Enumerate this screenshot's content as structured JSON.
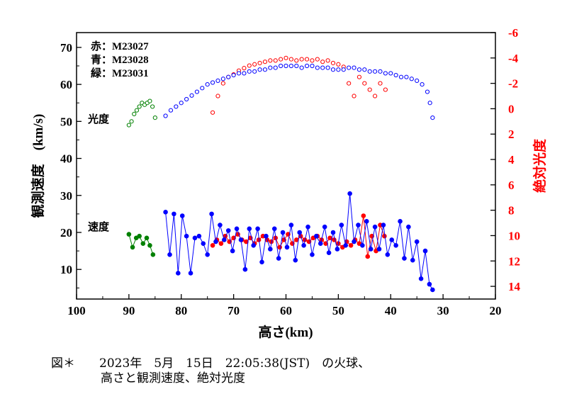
{
  "chart_data": {
    "type": "scatter",
    "xlabel": "高さ(km)",
    "ylabel_left": "観測速度　(km/s)",
    "ylabel_right": "絶対光度",
    "xlim": [
      100,
      20
    ],
    "ylim_left": [
      2,
      74
    ],
    "ylim_right": [
      15,
      -6
    ],
    "x_ticks": [
      "100",
      "90",
      "80",
      "70",
      "60",
      "50",
      "40",
      "30",
      "20"
    ],
    "y_left_ticks": [
      "10",
      "20",
      "30",
      "40",
      "50",
      "60",
      "70"
    ],
    "y_right_ticks": [
      "-6",
      "-4",
      "-2",
      "0",
      "2",
      "4",
      "6",
      "8",
      "10",
      "12",
      "14"
    ],
    "legend_lines": [
      "赤：M23027",
      "青：M23028",
      "緑：M23031"
    ],
    "label_brightness": "光度",
    "label_speed": "速度",
    "colors": {
      "red": "#ff0000",
      "blue": "#0000ff",
      "green": "#008000",
      "axis_right": "#ff0000"
    },
    "series": [
      {
        "name": "M23027",
        "kind": "speed",
        "color": "red",
        "x": [
          74.0,
          73.2,
          72.4,
          71.6,
          70.8,
          70.0,
          69.2,
          68.4,
          67.6,
          66.8,
          66.0,
          65.2,
          64.4,
          63.6,
          62.8,
          62.0,
          61.2,
          60.4,
          59.6,
          58.8,
          58.0,
          57.2,
          56.4,
          55.6,
          54.8,
          54.0,
          53.2,
          52.4,
          51.6,
          50.8,
          50.0,
          49.2,
          48.4,
          47.6,
          46.8,
          46.0,
          45.2,
          44.4,
          43.6,
          42.8,
          42.0,
          41.2
        ],
        "y": [
          16.5,
          18.0,
          17.0,
          19.0,
          17.5,
          18.5,
          19.5,
          18.0,
          17.5,
          18.5,
          17.0,
          18.0,
          19.0,
          18.0,
          17.5,
          18.5,
          16.0,
          18.0,
          19.5,
          17.0,
          18.0,
          19.0,
          18.0,
          17.5,
          18.5,
          19.0,
          18.0,
          17.0,
          18.5,
          18.0,
          17.0,
          16.0,
          17.5,
          16.5,
          18.0,
          17.0,
          24.5,
          13.5,
          19.0,
          15.0,
          22.0,
          19.0
        ]
      },
      {
        "name": "M23028",
        "kind": "speed",
        "color": "blue",
        "x": [
          83.0,
          82.2,
          81.4,
          80.6,
          79.8,
          79.0,
          78.2,
          77.4,
          76.6,
          75.8,
          75.0,
          74.2,
          73.4,
          72.6,
          71.8,
          71.0,
          70.2,
          69.4,
          68.6,
          67.8,
          67.0,
          66.2,
          65.4,
          64.6,
          63.8,
          63.0,
          62.2,
          61.4,
          60.6,
          59.8,
          59.0,
          58.2,
          57.4,
          56.6,
          55.8,
          55.0,
          54.2,
          53.4,
          52.6,
          51.8,
          51.0,
          50.2,
          49.4,
          48.6,
          47.8,
          47.0,
          46.2,
          45.4,
          44.6,
          43.8,
          43.0,
          42.2,
          41.4,
          40.6,
          39.8,
          39.0,
          38.2,
          37.4,
          36.6,
          35.8,
          35.0,
          34.2,
          33.4,
          32.6,
          32.0
        ],
        "y": [
          25.5,
          14.0,
          25.0,
          9.0,
          24.5,
          19.0,
          9.0,
          18.5,
          19.0,
          17.0,
          14.0,
          25.0,
          17.5,
          22.0,
          18.0,
          20.5,
          15.0,
          21.0,
          18.0,
          10.0,
          21.0,
          16.5,
          21.0,
          12.0,
          19.0,
          15.5,
          21.0,
          13.0,
          20.0,
          16.0,
          22.0,
          12.5,
          20.0,
          16.5,
          21.5,
          14.0,
          19.0,
          17.0,
          21.5,
          14.5,
          20.0,
          15.5,
          22.0,
          16.5,
          30.5,
          17.5,
          22.0,
          16.5,
          23.0,
          15.5,
          21.5,
          15.5,
          22.0,
          14.0,
          18.0,
          16.5,
          23.0,
          13.0,
          21.5,
          12.5,
          17.5,
          7.5,
          15.0,
          6.0,
          4.5
        ]
      },
      {
        "name": "M23031",
        "kind": "speed",
        "color": "green",
        "x": [
          90.0,
          89.3,
          88.6,
          88.0,
          87.3,
          86.6,
          86.0,
          85.4
        ],
        "y": [
          19.5,
          16.0,
          18.5,
          19.0,
          17.0,
          18.5,
          16.5,
          14.0
        ]
      },
      {
        "name": "M23027",
        "kind": "brightness",
        "color": "red",
        "x": [
          74.0,
          73.0,
          72.0,
          71.0,
          70.0,
          69.0,
          68.0,
          67.0,
          66.0,
          65.0,
          64.0,
          63.0,
          62.0,
          61.0,
          60.0,
          59.0,
          58.0,
          57.0,
          56.0,
          55.0,
          54.0,
          53.0,
          52.0,
          51.0,
          50.0,
          49.0,
          48.0,
          47.0,
          46.0,
          45.0,
          44.0,
          43.0,
          42.0,
          41.0
        ],
        "y": [
          0.3,
          -1.0,
          -2.0,
          -2.5,
          -2.7,
          -3.0,
          -3.2,
          -3.4,
          -3.5,
          -3.6,
          -3.7,
          -3.8,
          -3.8,
          -3.9,
          -4.0,
          -3.9,
          -3.8,
          -3.9,
          -3.9,
          -3.8,
          -3.9,
          -3.7,
          -3.8,
          -3.6,
          -3.5,
          -3.3,
          -2.0,
          -1.0,
          -2.5,
          -2.0,
          -1.5,
          -1.0,
          -2.0,
          -1.5
        ]
      },
      {
        "name": "M23028",
        "kind": "brightness",
        "color": "blue",
        "x": [
          83.0,
          82.0,
          81.0,
          80.0,
          79.0,
          78.0,
          77.0,
          76.0,
          75.0,
          74.0,
          73.0,
          72.0,
          71.0,
          70.0,
          69.0,
          68.0,
          67.0,
          66.0,
          65.0,
          64.0,
          63.0,
          62.0,
          61.0,
          60.0,
          59.0,
          58.0,
          57.0,
          56.0,
          55.0,
          54.0,
          53.0,
          52.0,
          51.0,
          50.0,
          49.0,
          48.0,
          47.0,
          46.0,
          45.0,
          44.0,
          43.0,
          42.0,
          41.0,
          40.0,
          39.0,
          38.0,
          37.0,
          36.0,
          35.0,
          34.0,
          33.0,
          32.5,
          32.0
        ],
        "y": [
          51.5,
          53.0,
          54.0,
          55.0,
          56.0,
          57.0,
          58.0,
          59.0,
          60.0,
          60.5,
          61.0,
          61.5,
          62.0,
          62.5,
          63.0,
          63.0,
          63.5,
          63.5,
          64.0,
          64.0,
          64.5,
          64.5,
          65.0,
          65.0,
          65.0,
          65.0,
          64.5,
          65.0,
          65.0,
          64.5,
          64.5,
          64.5,
          64.0,
          64.0,
          64.0,
          64.5,
          64.5,
          64.0,
          64.0,
          63.5,
          63.5,
          63.5,
          63.0,
          63.0,
          62.5,
          62.0,
          62.0,
          61.5,
          61.0,
          60.0,
          58.0,
          55.0,
          51.0
        ]
      },
      {
        "name": "M23031",
        "kind": "brightness",
        "color": "green",
        "x": [
          90.0,
          89.5,
          89.0,
          88.5,
          88.0,
          87.5,
          87.0,
          86.5,
          86.0,
          85.5,
          85.0
        ],
        "y": [
          49.0,
          50.0,
          52.0,
          53.0,
          54.0,
          55.0,
          54.5,
          55.0,
          55.5,
          54.0,
          51.0
        ]
      }
    ]
  },
  "caption": {
    "line1": "図＊　　2023年　5月　15日　22:05:38(JST)　の火球、",
    "line2": "高さと観測速度、絶対光度"
  }
}
